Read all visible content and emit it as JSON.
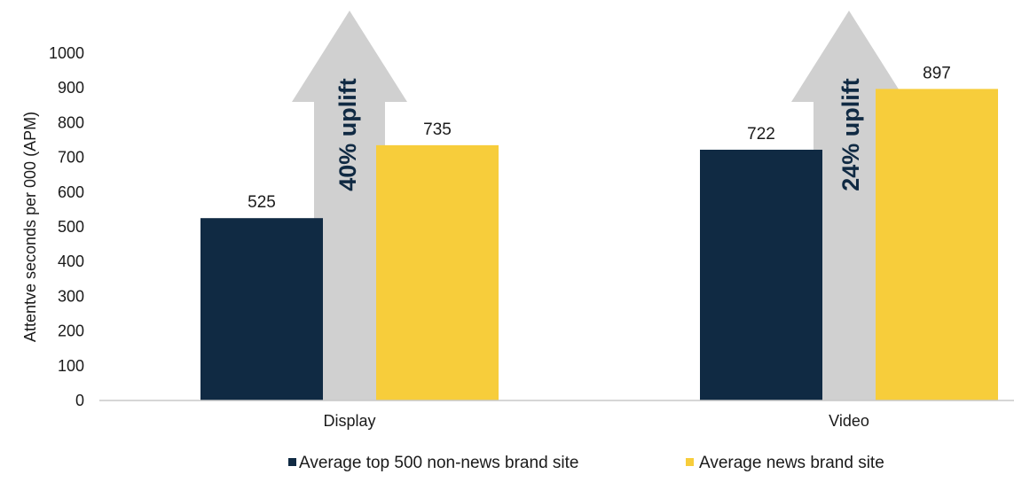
{
  "chart_data": {
    "type": "bar",
    "categories": [
      "Display",
      "Video"
    ],
    "series": [
      {
        "name": "Average top 500 non-news brand site",
        "values": [
          525,
          722
        ]
      },
      {
        "name": "Average news brand site",
        "values": [
          735,
          897
        ]
      }
    ],
    "ylabel": "Attentve seconds per 000 (APM)",
    "ylim": [
      0,
      1000
    ],
    "yticks": [
      0,
      100,
      200,
      300,
      400,
      500,
      600,
      700,
      800,
      900,
      1000
    ],
    "grid": false,
    "legend_position": "bottom",
    "annotations": [
      "40% uplift",
      "24% uplift"
    ],
    "colors": {
      "series1": "#102a43",
      "series2": "#f7cd3b",
      "arrow": "#d0d0d0"
    }
  }
}
